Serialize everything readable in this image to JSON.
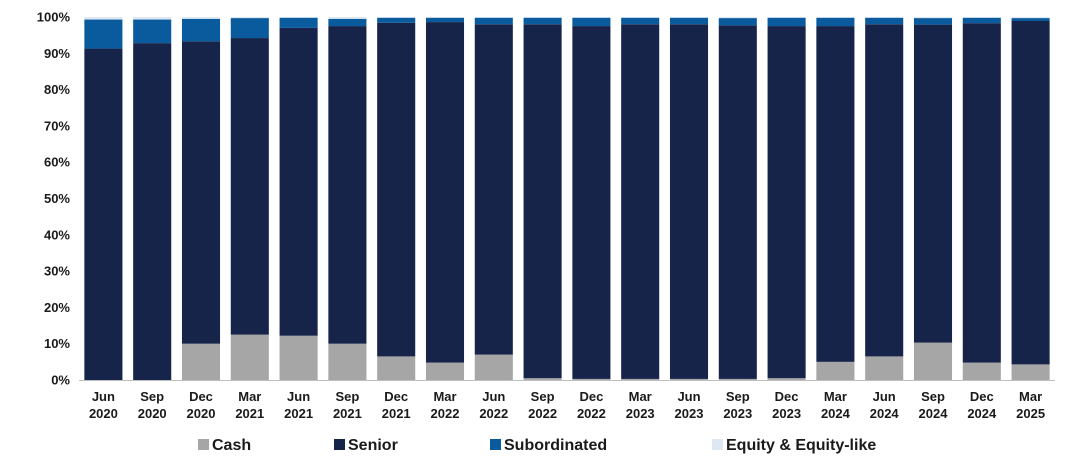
{
  "chart_data": {
    "type": "bar",
    "stacked": true,
    "percent": true,
    "title": "",
    "xlabel": "",
    "ylabel": "",
    "ylim": [
      0,
      100
    ],
    "yticks": [
      "0%",
      "10%",
      "20%",
      "30%",
      "40%",
      "50%",
      "60%",
      "70%",
      "80%",
      "90%",
      "100%"
    ],
    "categories": [
      [
        "Jun",
        "2020"
      ],
      [
        "Sep",
        "2020"
      ],
      [
        "Dec",
        "2020"
      ],
      [
        "Mar",
        "2021"
      ],
      [
        "Jun",
        "2021"
      ],
      [
        "Sep",
        "2021"
      ],
      [
        "Dec",
        "2021"
      ],
      [
        "Mar",
        "2022"
      ],
      [
        "Jun",
        "2022"
      ],
      [
        "Sep",
        "2022"
      ],
      [
        "Dec",
        "2022"
      ],
      [
        "Mar",
        "2023"
      ],
      [
        "Jun",
        "2023"
      ],
      [
        "Sep",
        "2023"
      ],
      [
        "Dec",
        "2023"
      ],
      [
        "Mar",
        "2024"
      ],
      [
        "Jun",
        "2024"
      ],
      [
        "Sep",
        "2024"
      ],
      [
        "Dec",
        "2024"
      ],
      [
        "Mar",
        "2025"
      ]
    ],
    "series": [
      {
        "name": "Cash",
        "color": "#a6a6a6",
        "values": [
          0,
          0,
          10,
          12.5,
          12.2,
          10,
          6.5,
          4.8,
          7,
          0.5,
          0.3,
          0.3,
          0.3,
          0.3,
          0.5,
          5,
          6.5,
          10.3,
          4.8,
          4.3
        ]
      },
      {
        "name": "Senior",
        "color": "#17244a",
        "values": [
          91.3,
          92.8,
          83.3,
          81.7,
          84.8,
          87.5,
          91.9,
          93.8,
          91,
          97.5,
          97.2,
          97.7,
          97.7,
          97.4,
          97,
          92.5,
          91.5,
          87.6,
          93.5,
          94.6
        ]
      },
      {
        "name": "Subordinated",
        "color": "#0a5a9e",
        "values": [
          8,
          6.5,
          6.2,
          5.5,
          2.8,
          2,
          1.4,
          1.2,
          1.8,
          1.8,
          2.3,
          1.8,
          1.8,
          2,
          2.3,
          2.3,
          1.8,
          1.8,
          1.5,
          0.8
        ]
      },
      {
        "name": "Equity & Equity-like",
        "color": "#dde8f3",
        "values": [
          0.7,
          0.7,
          0.5,
          0.3,
          0.2,
          0.5,
          0.2,
          0.2,
          0.2,
          0.2,
          0.2,
          0.2,
          0.2,
          0.3,
          0.2,
          0.2,
          0.2,
          0.3,
          0.2,
          0.3
        ]
      }
    ],
    "legend_position": "bottom",
    "grid": false
  }
}
